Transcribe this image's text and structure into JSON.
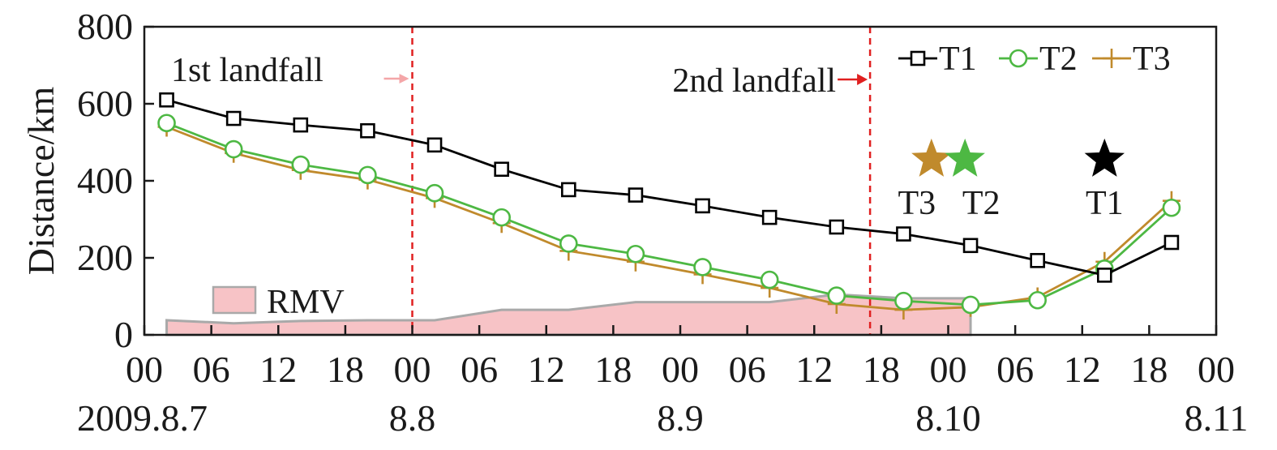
{
  "chart_data": {
    "type": "line",
    "title": "",
    "xlabel": "",
    "ylabel": "Distance/km",
    "ylim": [
      0,
      800
    ],
    "y_ticks": [
      "0",
      "200",
      "400",
      "600",
      "800"
    ],
    "x_ticks": [
      "00",
      "06",
      "12",
      "18",
      "00",
      "06",
      "12",
      "18",
      "00",
      "06",
      "12",
      "18",
      "00",
      "06",
      "12",
      "18",
      "00"
    ],
    "date_labels": [
      {
        "label": "2009.8.7",
        "hour": 0
      },
      {
        "label": "8.8",
        "hour": 24
      },
      {
        "label": "8.9",
        "hour": 48
      },
      {
        "label": "8.10",
        "hour": 72
      },
      {
        "label": "8.11",
        "hour": 96
      }
    ],
    "x_range_hours": [
      0,
      96
    ],
    "series": [
      {
        "name": "T1",
        "color": "#000000",
        "marker": "square",
        "x": [
          2,
          8,
          14,
          20,
          26,
          32,
          38,
          44,
          50,
          56,
          62,
          68,
          74,
          80,
          86,
          92
        ],
        "y": [
          610,
          562,
          545,
          530,
          493,
          430,
          377,
          363,
          335,
          305,
          280,
          262,
          232,
          193,
          155,
          240
        ]
      },
      {
        "name": "T2",
        "color": "#4db843",
        "marker": "circle",
        "x": [
          2,
          8,
          14,
          20,
          26,
          32,
          38,
          44,
          50,
          56,
          62,
          68,
          74,
          80,
          86,
          92
        ],
        "y": [
          550,
          482,
          442,
          415,
          368,
          305,
          237,
          210,
          176,
          143,
          102,
          88,
          78,
          90,
          172,
          330
        ]
      },
      {
        "name": "T3",
        "color": "#c08a2c",
        "marker": "plus",
        "x": [
          2,
          8,
          14,
          20,
          26,
          32,
          38,
          44,
          50,
          56,
          62,
          68,
          74,
          80,
          86,
          92
        ],
        "y": [
          540,
          472,
          428,
          403,
          355,
          290,
          218,
          190,
          157,
          122,
          80,
          65,
          72,
          98,
          190,
          348
        ]
      }
    ],
    "area": {
      "name": "RMV",
      "color": "#f7c3c6",
      "edge_color": "#a9a9a9",
      "x": [
        2,
        8,
        14,
        20,
        26,
        32,
        38,
        44,
        50,
        56,
        62,
        68,
        74
      ],
      "y": [
        38,
        30,
        36,
        38,
        38,
        65,
        65,
        85,
        85,
        85,
        105,
        95,
        95
      ]
    },
    "annotations": [
      {
        "text": "1st landfall",
        "x_hours": 24,
        "arrow_color": "#f4a6a8"
      },
      {
        "text": "2nd landfall",
        "x_hours": 65,
        "arrow_color": "#e02020"
      }
    ],
    "landfall_line_color": "#e02020",
    "star_markers": [
      {
        "label": "T3",
        "color": "#c08a2c",
        "x_hours": 70.5,
        "y": 455
      },
      {
        "label": "T2",
        "color": "#4db843",
        "x_hours": 73.5,
        "y": 455
      },
      {
        "label": "T1",
        "color": "#000000",
        "x_hours": 86,
        "y": 455
      }
    ],
    "legend": {
      "position": "top-right",
      "items": [
        "T1",
        "T2",
        "T3"
      ]
    },
    "grid": false
  }
}
